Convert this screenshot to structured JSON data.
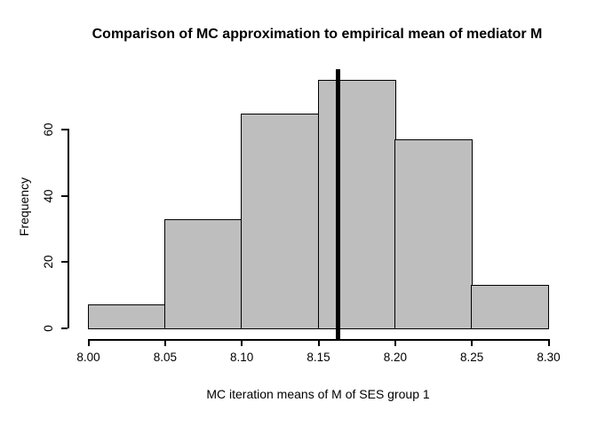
{
  "title": "Comparison of MC approximation to empirical mean of mediator M",
  "chart_data": {
    "type": "bar",
    "subtype": "histogram",
    "title": "Comparison of MC approximation to empirical mean of mediator M",
    "xlabel": "MC iteration means of M of SES group 1",
    "ylabel": "Frequency",
    "bin_breaks": [
      8.0,
      8.05,
      8.1,
      8.15,
      8.2,
      8.25,
      8.3
    ],
    "frequencies": [
      7,
      33,
      65,
      75,
      57,
      13
    ],
    "x_ticks": [
      "8.00",
      "8.05",
      "8.10",
      "8.15",
      "8.20",
      "8.25",
      "8.30"
    ],
    "x_tick_values": [
      8.0,
      8.05,
      8.1,
      8.15,
      8.2,
      8.25,
      8.3
    ],
    "y_ticks": [
      "0",
      "20",
      "40",
      "60"
    ],
    "y_tick_values": [
      0,
      20,
      40,
      60
    ],
    "xlim": [
      8.0,
      8.3
    ],
    "ylim": [
      0,
      75
    ],
    "grid": "off",
    "legend": "none",
    "vline_x": 8.163,
    "colors": {
      "bar_fill": "#BEBEBE",
      "bar_border": "#000000",
      "axis": "#000000",
      "vline": "#000000",
      "text": "#000000",
      "background": "#FFFFFF"
    }
  }
}
